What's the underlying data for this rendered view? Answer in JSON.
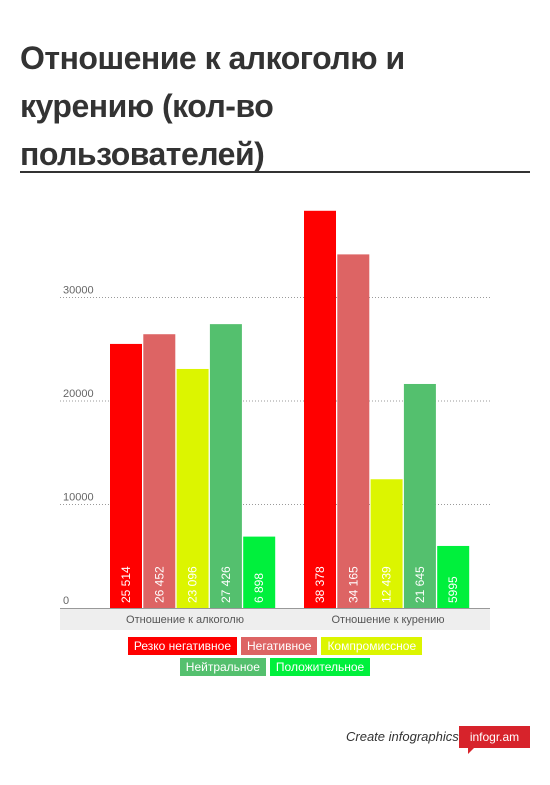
{
  "chart_data": {
    "type": "bar",
    "title": "Отношение к алкоголю и курению (кол-во пользователей)",
    "categories": [
      "Отношение к алкоголю",
      "Отношение к курению"
    ],
    "series": [
      {
        "name": "Резко негативное",
        "color": "#ff0000",
        "values": [
          25514,
          38378
        ],
        "labels": [
          "25 514",
          "38 378"
        ]
      },
      {
        "name": "Негативное",
        "color": "#dd6464",
        "values": [
          26452,
          34165
        ],
        "labels": [
          "26 452",
          "34 165"
        ]
      },
      {
        "name": "Компромиссное",
        "color": "#dcf500",
        "values": [
          23096,
          12439
        ],
        "labels": [
          "23 096",
          "12 439"
        ]
      },
      {
        "name": "Нейтральное",
        "color": "#54c06e",
        "values": [
          27426,
          21645
        ],
        "labels": [
          "27 426",
          "21 645"
        ]
      },
      {
        "name": "Положительное",
        "color": "#00f03c",
        "values": [
          6898,
          5995
        ],
        "labels": [
          "6 898",
          "5995"
        ]
      }
    ],
    "yticks": [
      0,
      10000,
      20000,
      30000
    ],
    "ytick_labels": [
      "0",
      "10000",
      "20000",
      "30000"
    ],
    "ylim": [
      0,
      40000
    ],
    "grid": true,
    "legend_position": "bottom"
  },
  "footer": {
    "text": "Create infographics",
    "badge": "infogr.am"
  }
}
